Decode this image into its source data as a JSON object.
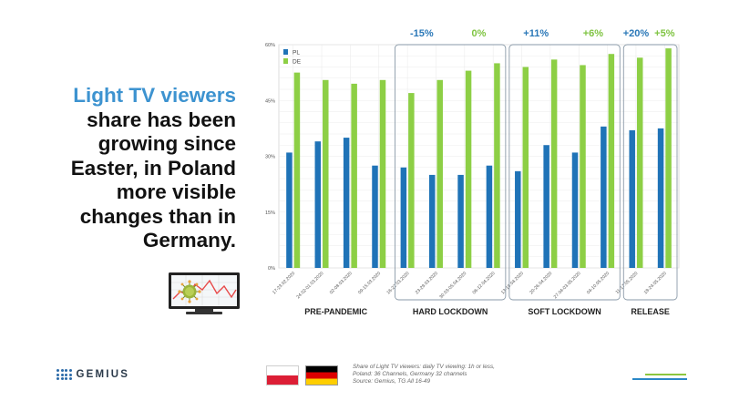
{
  "headline": {
    "accent": "Light TV viewers",
    "rest": [
      "share has been",
      "growing since",
      "Easter, in Poland",
      "more visible",
      "changes than in",
      "Germany."
    ]
  },
  "chart_data": {
    "type": "bar",
    "categories": [
      "17-23.02.2020",
      "24.02-01.03.2020",
      "02-08.03.2020",
      "09-15.03.2020",
      "16-22.03.2020",
      "23-29.03.2020",
      "30.03-05.04.2020",
      "06-12.04.2020",
      "13-19.04.2020",
      "20-26.04.2020",
      "27.04-03.05.2020",
      "04-10.05.2020",
      "11-17.05.2020",
      "18-24.05.2020"
    ],
    "series": [
      {
        "name": "PL",
        "color": "#1f73b7",
        "values": [
          31,
          34,
          35,
          27.5,
          27,
          25,
          25,
          27.5,
          26,
          33,
          31,
          38,
          37,
          37.5
        ]
      },
      {
        "name": "DE",
        "color": "#8dcf45",
        "values": [
          52.5,
          50.5,
          49.5,
          50.5,
          47,
          50.5,
          53,
          55,
          54,
          56,
          54.5,
          57.5,
          56.5,
          59
        ]
      }
    ],
    "yticks": [
      "0%",
      "15%",
      "30%",
      "45%",
      "60%"
    ],
    "ylim": [
      0,
      60
    ],
    "grid": true,
    "legend_position": "top-left",
    "phases": [
      {
        "label": "PRE-PANDEMIC",
        "start": 0,
        "end": 3,
        "boxed": false
      },
      {
        "label": "HARD LOCKDOWN",
        "start": 4,
        "end": 7,
        "boxed": true
      },
      {
        "label": "SOFT LOCKDOWN",
        "start": 8,
        "end": 11,
        "boxed": true
      },
      {
        "label": "RELEASE",
        "start": 12,
        "end": 13,
        "boxed": true
      }
    ],
    "annotations": [
      {
        "text": "-15%",
        "phase": 1,
        "series": "PL"
      },
      {
        "text": "0%",
        "phase": 1,
        "series": "DE"
      },
      {
        "text": "+11%",
        "phase": 2,
        "series": "PL"
      },
      {
        "text": "+6%",
        "phase": 2,
        "series": "DE"
      },
      {
        "text": "+20%",
        "phase": 3,
        "series": "PL"
      },
      {
        "text": "+5%",
        "phase": 3,
        "series": "DE"
      }
    ]
  },
  "footer": {
    "logo_text": "GEMIUS",
    "note_lines": [
      "Share of Light TV viewers: daily TV viewing: 1h or less,",
      "Poland: 36 Channels, Germany 32 channels",
      "Source: Gemius, TG All 16-49"
    ]
  },
  "colors": {
    "accent": "#3d93d0",
    "pl_blue": "#1f73b7",
    "de_green": "#8dcf45"
  }
}
